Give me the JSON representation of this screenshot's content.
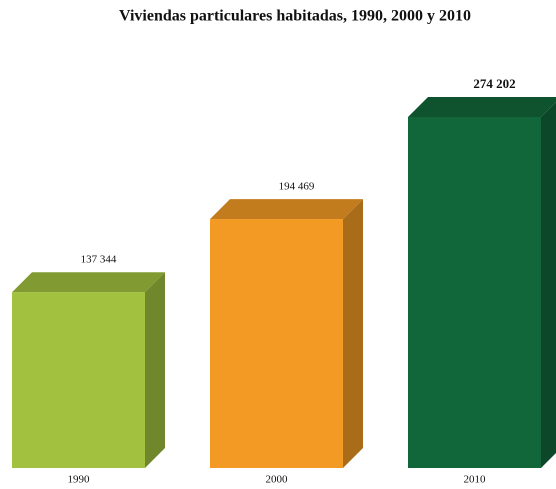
{
  "chart_data": {
    "type": "bar3d",
    "title": "Viviendas particulares habitadas, 1990, 2000 y 2010",
    "categories": [
      "1990",
      "2000",
      "2010"
    ],
    "values": [
      137344,
      194469,
      274202
    ],
    "value_labels": [
      "137 344",
      "194 469",
      "274 202"
    ],
    "colors": [
      "#a2c13e",
      "#f29a24",
      "#11663a"
    ]
  }
}
